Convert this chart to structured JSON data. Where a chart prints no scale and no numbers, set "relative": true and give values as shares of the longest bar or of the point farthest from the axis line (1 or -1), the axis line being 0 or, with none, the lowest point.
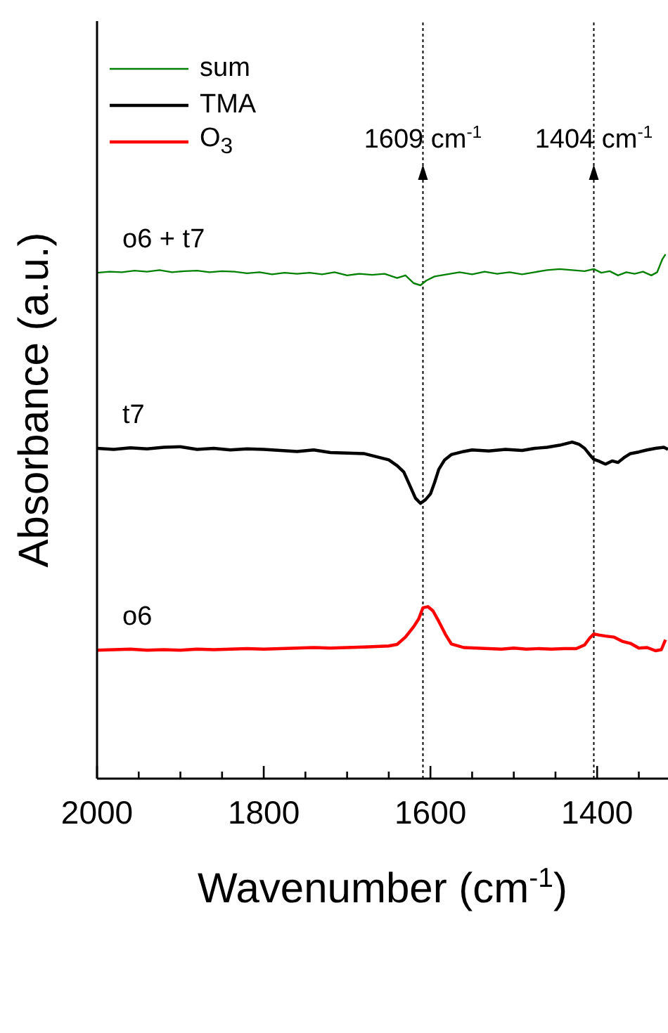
{
  "chart_data": {
    "type": "line",
    "relative": true,
    "xlabel": "Wavenumber (cm$^{-1}$)",
    "ylabel": "Absorbance (a.u.)",
    "xlim": [
      2000,
      1315
    ],
    "xticks": [
      2000,
      {
        "value": 1950,
        "label": null
      },
      {
        "value": 1900,
        "label": null
      },
      {
        "value": 1850,
        "label": null
      },
      1800,
      {
        "value": 1750,
        "label": null
      },
      {
        "value": 1700,
        "label": null
      },
      {
        "value": 1650,
        "label": null
      },
      1600,
      {
        "value": 1550,
        "label": null
      },
      {
        "value": 1500,
        "label": null
      },
      {
        "value": 1450,
        "label": null
      },
      1400,
      {
        "value": 1350,
        "label": null
      }
    ],
    "tick_labels": "x",
    "legend": "top left",
    "marker": "none",
    "line_style": "solid",
    "series": [
      {
        "name": "sum",
        "color": "#008000",
        "x": [
          2000,
          1985,
          1970,
          1955,
          1940,
          1925,
          1910,
          1895,
          1880,
          1865,
          1850,
          1835,
          1820,
          1805,
          1790,
          1775,
          1760,
          1745,
          1730,
          1715,
          1700,
          1685,
          1670,
          1655,
          1640,
          1630,
          1620,
          1612,
          1605,
          1595,
          1580,
          1565,
          1550,
          1535,
          1520,
          1505,
          1490,
          1475,
          1460,
          1445,
          1430,
          1415,
          1404,
          1395,
          1385,
          1375,
          1365,
          1355,
          1345,
          1335,
          1328,
          1322,
          1318
        ],
        "values": [
          0.965,
          0.967,
          0.966,
          0.969,
          0.967,
          0.97,
          0.966,
          0.968,
          0.969,
          0.966,
          0.968,
          0.967,
          0.964,
          0.966,
          0.962,
          0.965,
          0.963,
          0.965,
          0.962,
          0.966,
          0.96,
          0.963,
          0.961,
          0.963,
          0.955,
          0.96,
          0.945,
          0.941,
          0.95,
          0.958,
          0.962,
          0.966,
          0.962,
          0.967,
          0.963,
          0.966,
          0.962,
          0.966,
          0.97,
          0.972,
          0.97,
          0.968,
          0.972,
          0.965,
          0.968,
          0.96,
          0.966,
          0.963,
          0.967,
          0.96,
          0.966,
          0.99,
          1.0
        ]
      },
      {
        "name": "TMA",
        "color": "#000000",
        "x": [
          2000,
          1980,
          1960,
          1940,
          1920,
          1900,
          1880,
          1860,
          1840,
          1820,
          1800,
          1780,
          1760,
          1740,
          1720,
          1700,
          1680,
          1660,
          1650,
          1640,
          1632,
          1625,
          1618,
          1612,
          1606,
          1600,
          1595,
          1590,
          1583,
          1575,
          1560,
          1550,
          1530,
          1510,
          1490,
          1475,
          1460,
          1445,
          1430,
          1422,
          1415,
          1409,
          1404,
          1397,
          1390,
          1382,
          1375,
          1368,
          1360,
          1350,
          1340,
          1330,
          1320,
          1315
        ],
        "values": [
          0.63,
          0.628,
          0.631,
          0.629,
          0.632,
          0.633,
          0.628,
          0.63,
          0.627,
          0.629,
          0.628,
          0.626,
          0.624,
          0.627,
          0.622,
          0.621,
          0.62,
          0.612,
          0.608,
          0.597,
          0.585,
          0.56,
          0.535,
          0.525,
          0.532,
          0.543,
          0.565,
          0.59,
          0.608,
          0.618,
          0.624,
          0.627,
          0.625,
          0.628,
          0.626,
          0.63,
          0.632,
          0.636,
          0.642,
          0.638,
          0.63,
          0.618,
          0.609,
          0.605,
          0.6,
          0.606,
          0.603,
          0.612,
          0.62,
          0.623,
          0.627,
          0.63,
          0.632,
          0.628
        ]
      },
      {
        "name": "O$_{3}$",
        "color": "#ff0000",
        "x": [
          2000,
          1980,
          1960,
          1940,
          1920,
          1900,
          1880,
          1860,
          1840,
          1820,
          1800,
          1780,
          1760,
          1740,
          1720,
          1700,
          1680,
          1665,
          1650,
          1640,
          1630,
          1620,
          1614,
          1609,
          1603,
          1597,
          1590,
          1582,
          1575,
          1560,
          1545,
          1530,
          1515,
          1500,
          1485,
          1470,
          1455,
          1440,
          1425,
          1415,
          1409,
          1404,
          1398,
          1390,
          1380,
          1370,
          1360,
          1350,
          1340,
          1330,
          1323,
          1318
        ],
        "values": [
          0.245,
          0.246,
          0.247,
          0.245,
          0.246,
          0.245,
          0.247,
          0.246,
          0.247,
          0.248,
          0.247,
          0.248,
          0.249,
          0.25,
          0.249,
          0.25,
          0.251,
          0.252,
          0.253,
          0.256,
          0.27,
          0.29,
          0.305,
          0.326,
          0.328,
          0.32,
          0.3,
          0.275,
          0.257,
          0.25,
          0.249,
          0.248,
          0.247,
          0.249,
          0.247,
          0.248,
          0.247,
          0.248,
          0.248,
          0.255,
          0.268,
          0.276,
          0.274,
          0.272,
          0.27,
          0.262,
          0.258,
          0.249,
          0.25,
          0.244,
          0.246,
          0.265
        ]
      }
    ],
    "ref_lines": [
      {
        "axis": "x",
        "value": 1609,
        "label": "1609 cm$^{-1}$",
        "color": "#000000",
        "line_style": "dotted"
      },
      {
        "axis": "x",
        "value": 1404,
        "label": "1404 cm$^{-1}$",
        "color": "#000000",
        "line_style": "dotted"
      }
    ],
    "annotations": [
      "o6 + t7",
      "t7",
      "o6"
    ]
  }
}
